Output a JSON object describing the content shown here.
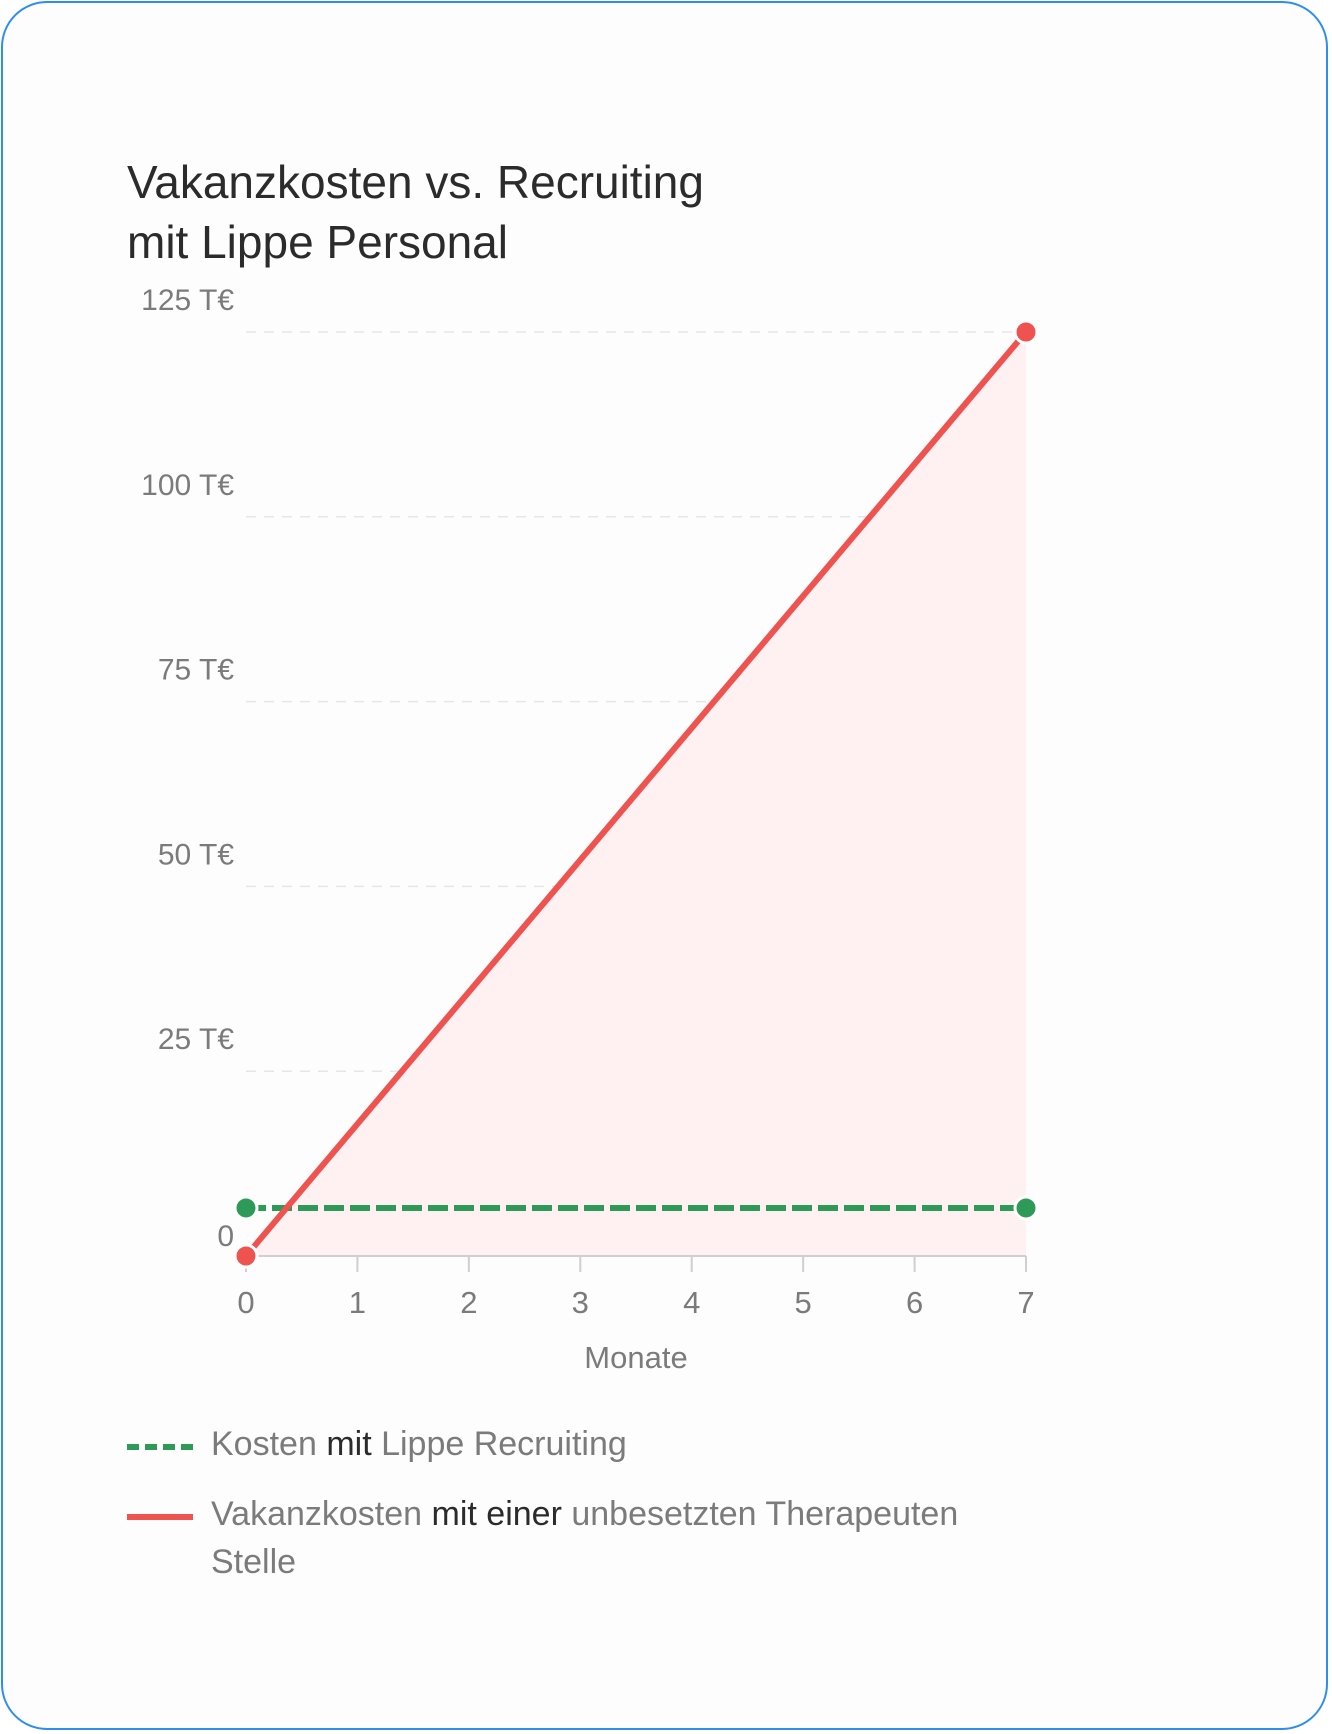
{
  "title": {
    "line1": "Vakanzkosten vs. Recruiting",
    "line2": "mit Lippe Personal"
  },
  "colors": {
    "border": "#2f8df0",
    "recruiting": "#2e9a57",
    "vacancy": "#ef5350",
    "vacancy_fill": "#fff0f1"
  },
  "legend": [
    {
      "style": "dashed",
      "color": "#2e9a57",
      "parts": [
        {
          "text": "Kosten ",
          "tone": "muted"
        },
        {
          "text": "mit",
          "tone": "dark"
        },
        {
          "text": " Lippe Recruiting",
          "tone": "muted"
        }
      ]
    },
    {
      "style": "solid",
      "color": "#ef5350",
      "parts": [
        {
          "text": "Vakanzkosten ",
          "tone": "muted"
        },
        {
          "text": "mit einer",
          "tone": "dark"
        },
        {
          "text": " unbesetzten Therapeuten Stelle",
          "tone": "muted"
        }
      ]
    }
  ],
  "chart_data": {
    "type": "line",
    "title": "Vakanzkosten vs. Recruiting mit Lippe Personal",
    "xlabel": "Monate",
    "ylabel": "",
    "xlim": [
      0,
      7
    ],
    "ylim": [
      0,
      125
    ],
    "x_ticks": [
      0,
      1,
      2,
      3,
      4,
      5,
      6,
      7
    ],
    "y_ticks": [
      0,
      25,
      50,
      75,
      100,
      125
    ],
    "y_tick_labels": [
      "0",
      "25 T€",
      "50 T€",
      "75 T€",
      "100 T€",
      "125 T€"
    ],
    "grid": "horizontal dashed",
    "legend_position": "bottom",
    "series": [
      {
        "name": "Kosten mit Lippe Recruiting",
        "style": "dashed",
        "color": "#2e9a57",
        "x": [
          0,
          7
        ],
        "y": [
          6.5,
          6.5
        ]
      },
      {
        "name": "Vakanzkosten mit einer unbesetzten Therapeuten Stelle",
        "style": "solid",
        "color": "#ef5350",
        "fill": "#fff0f1",
        "x": [
          0,
          7
        ],
        "y": [
          0,
          125
        ]
      }
    ]
  }
}
